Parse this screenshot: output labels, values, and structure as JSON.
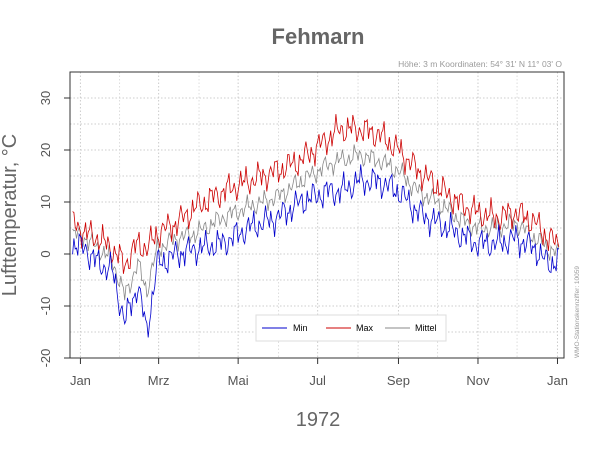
{
  "chart_data": {
    "type": "line",
    "title": "Fehmarn",
    "meta_text": "Höhe: 3 m   Koordinaten: 54° 31' N  11° 03' O",
    "side_note": "WMO-Stationskennziffer: 10059",
    "xlabel": "1972",
    "ylabel": "Lufttemperatur, °C",
    "ylim": [
      -20,
      35
    ],
    "xlim": [
      -7,
      372
    ],
    "grid": true,
    "legend_position": "bottom-center",
    "x_unit": "day of year 1972",
    "x_ticks": [
      {
        "label": "Jan",
        "value": 1
      },
      {
        "label": "Mrz",
        "value": 61
      },
      {
        "label": "Mai",
        "value": 122
      },
      {
        "label": "Jul",
        "value": 183
      },
      {
        "label": "Sep",
        "value": 245
      },
      {
        "label": "Nov",
        "value": 306
      },
      {
        "label": "Jan",
        "value": 367
      }
    ],
    "y_ticks": [
      -20,
      -10,
      0,
      10,
      20,
      30
    ],
    "anchors": {
      "x": [
        -5,
        5,
        15,
        25,
        35,
        45,
        52,
        60,
        75,
        90,
        110,
        130,
        152,
        170,
        190,
        200,
        215,
        230,
        245,
        260,
        275,
        290,
        305,
        320,
        335,
        350,
        360,
        368
      ],
      "min": [
        2,
        1,
        -2,
        -3,
        -13,
        -6,
        -15,
        -2,
        0,
        1,
        2,
        5,
        7,
        10,
        12,
        12,
        14,
        14,
        12,
        8,
        6,
        4,
        2,
        2,
        3,
        1,
        -2,
        -1
      ],
      "max": [
        6,
        4,
        3,
        1,
        -2,
        2,
        1,
        4,
        6,
        9,
        12,
        14,
        16,
        18,
        22,
        24,
        24,
        23,
        20,
        16,
        13,
        10,
        8,
        7,
        8,
        6,
        3,
        2
      ],
      "mittel": [
        4,
        3,
        1,
        -1,
        -8,
        -2,
        -7,
        1,
        3,
        4,
        7,
        9,
        11,
        14,
        17,
        18,
        19,
        18,
        16,
        12,
        10,
        7,
        5,
        5,
        6,
        3,
        1,
        0
      ]
    },
    "series": [
      {
        "name": "Min",
        "color": "#0000cc"
      },
      {
        "name": "Max",
        "color": "#cc0000"
      },
      {
        "name": "Mittel",
        "color": "#888888"
      }
    ]
  }
}
